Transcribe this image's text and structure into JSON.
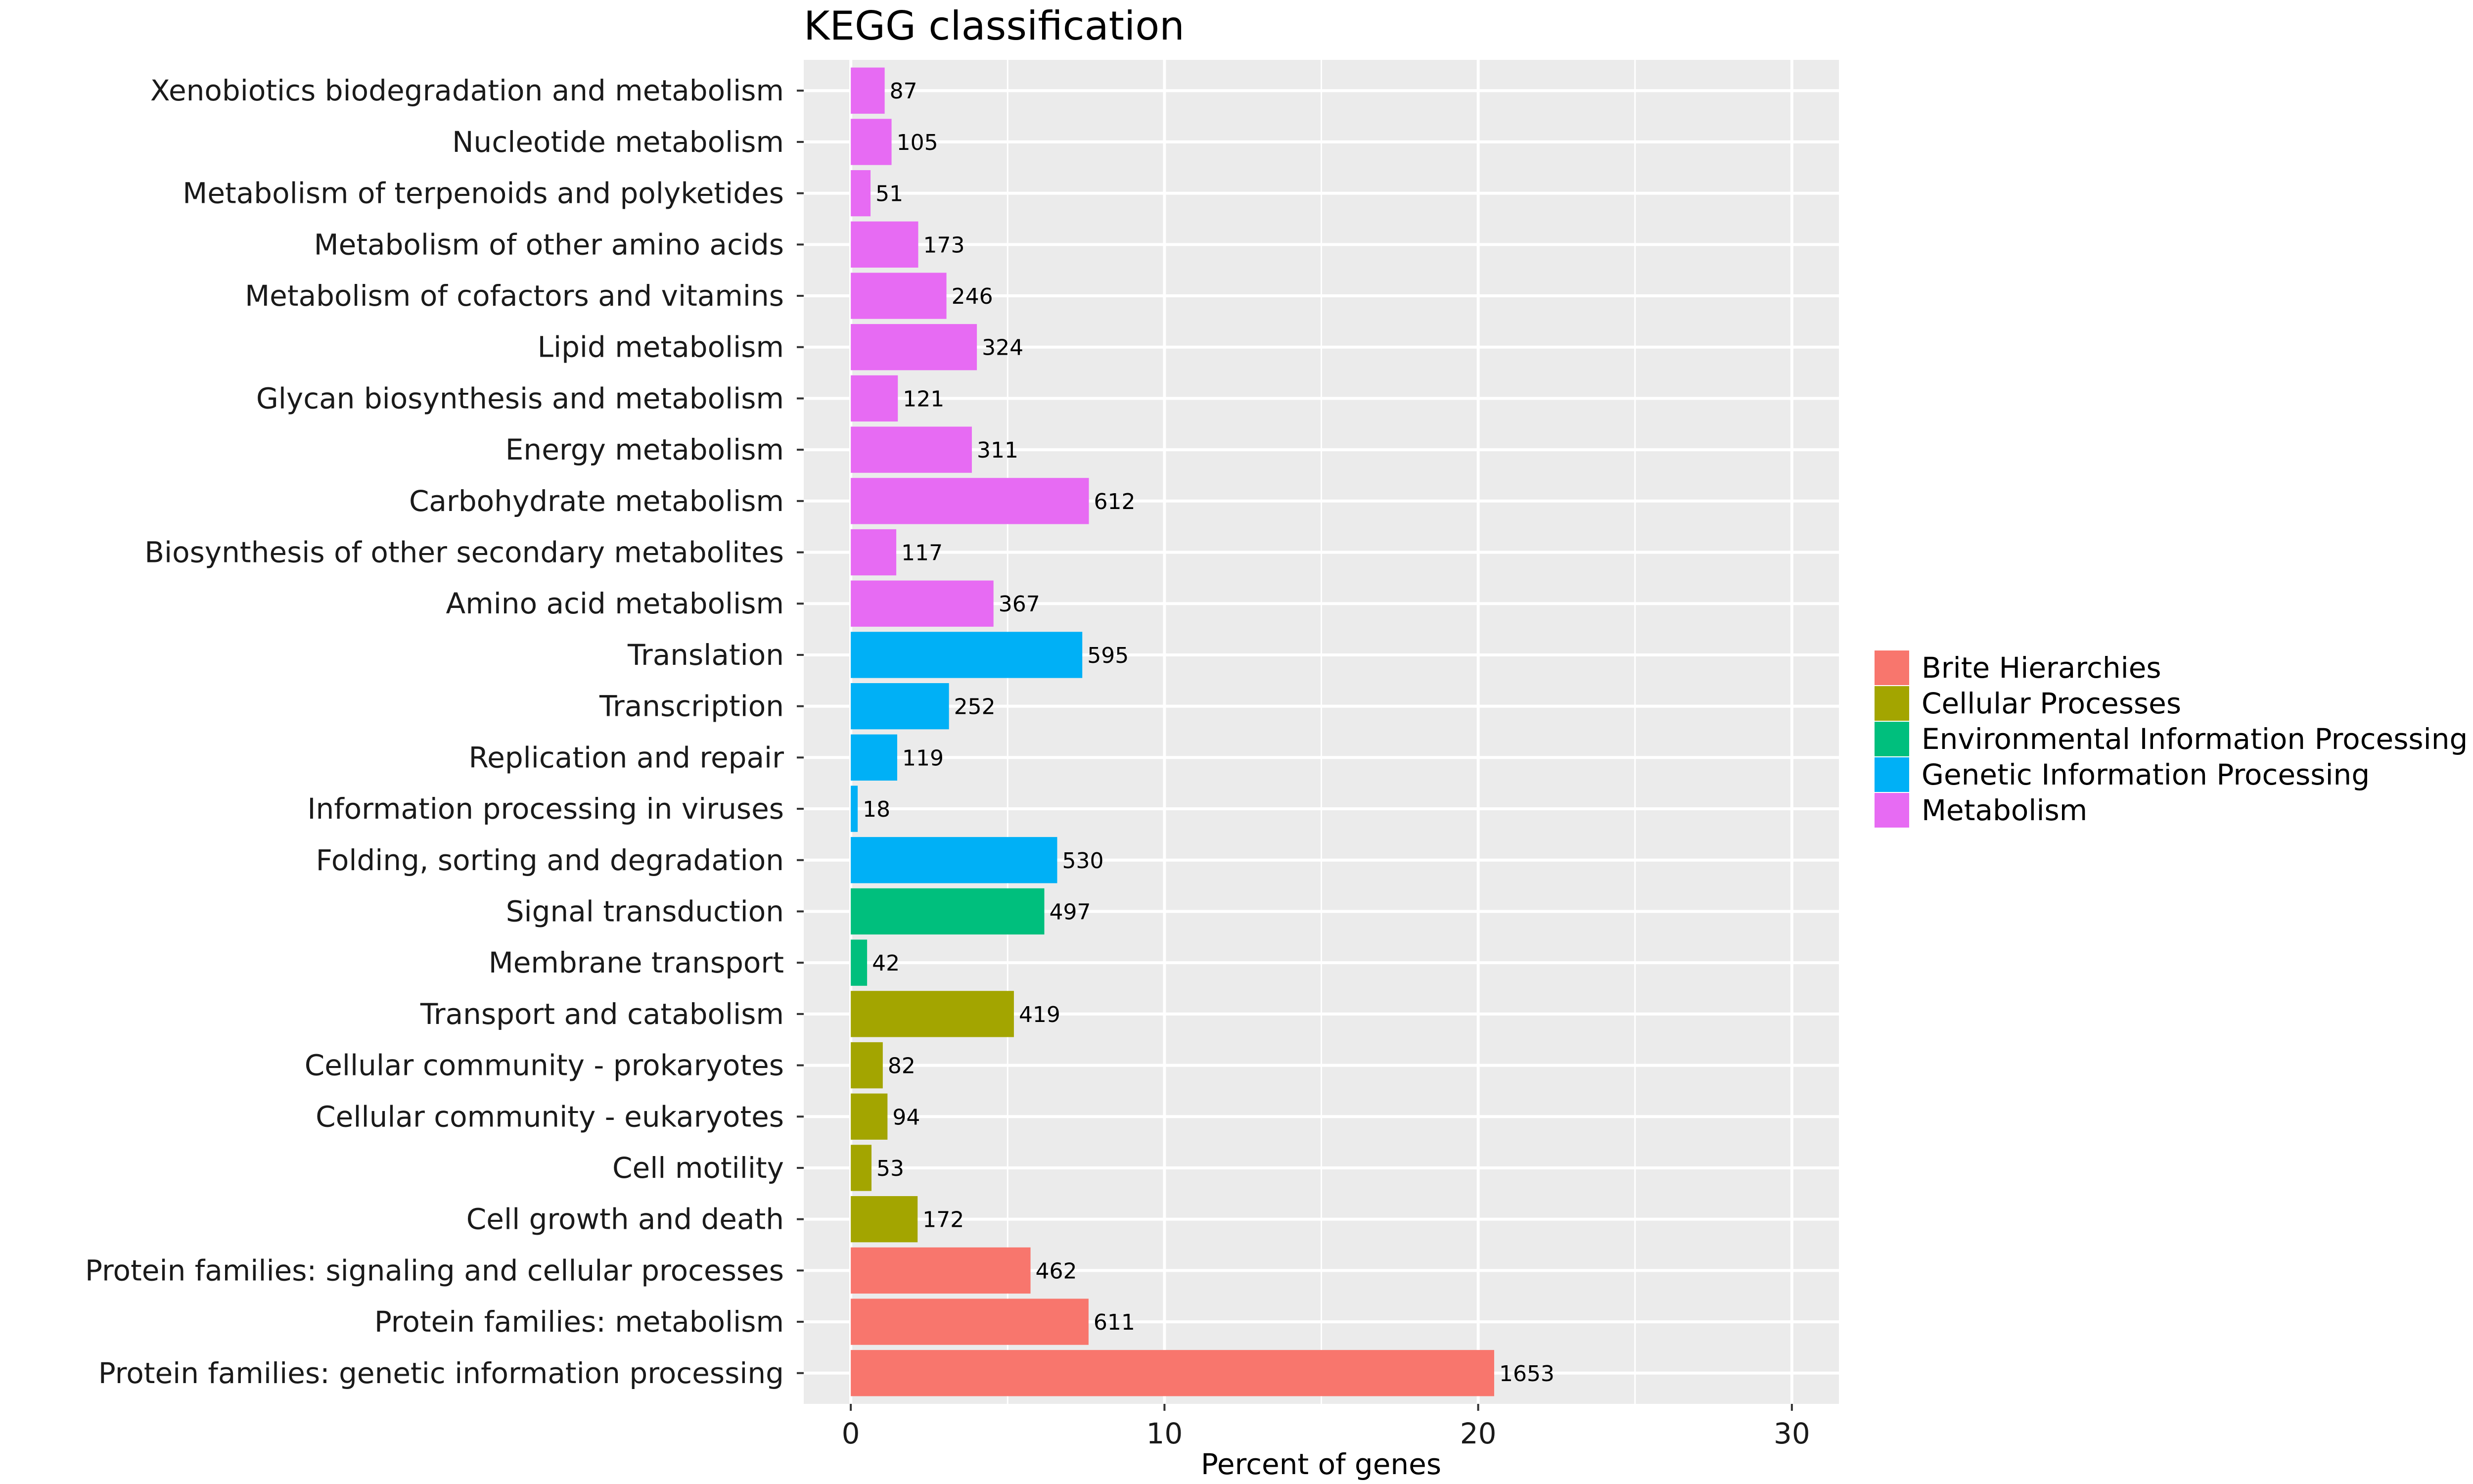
{
  "chart_data": {
    "type": "bar",
    "orientation": "horizontal",
    "title": "KEGG classification",
    "xlabel": "Percent of genes",
    "ylabel": "",
    "xlim": [
      -1.5,
      31.5
    ],
    "xticks": [
      0,
      10,
      20,
      30
    ],
    "grid": true,
    "legend_position": "right",
    "legend": [
      {
        "name": "Brite Hierarchies",
        "color": "#F8766D"
      },
      {
        "name": "Cellular Processes",
        "color": "#A3A500"
      },
      {
        "name": "Environmental Information Processing",
        "color": "#00BF7D"
      },
      {
        "name": "Genetic Information Processing",
        "color": "#00B0F6"
      },
      {
        "name": "Metabolism",
        "color": "#E76BF3"
      }
    ],
    "bars": [
      {
        "category": "Xenobiotics biodegradation and metabolism",
        "group": 4,
        "count": "87",
        "percent": 1.08
      },
      {
        "category": "Nucleotide metabolism",
        "group": 4,
        "count": "105",
        "percent": 1.3
      },
      {
        "category": "Metabolism of terpenoids and polyketides",
        "group": 4,
        "count": "51",
        "percent": 0.63
      },
      {
        "category": "Metabolism of other amino acids",
        "group": 4,
        "count": "173",
        "percent": 2.15
      },
      {
        "category": "Metabolism of cofactors and vitamins",
        "group": 4,
        "count": "246",
        "percent": 3.05
      },
      {
        "category": "Lipid metabolism",
        "group": 4,
        "count": "324",
        "percent": 4.02
      },
      {
        "category": "Glycan biosynthesis and metabolism",
        "group": 4,
        "count": "121",
        "percent": 1.5
      },
      {
        "category": "Energy metabolism",
        "group": 4,
        "count": "311",
        "percent": 3.86
      },
      {
        "category": "Carbohydrate metabolism",
        "group": 4,
        "count": "612",
        "percent": 7.59
      },
      {
        "category": "Biosynthesis of other secondary metabolites",
        "group": 4,
        "count": "117",
        "percent": 1.45
      },
      {
        "category": "Amino acid metabolism",
        "group": 4,
        "count": "367",
        "percent": 4.55
      },
      {
        "category": "Translation",
        "group": 3,
        "count": "595",
        "percent": 7.38
      },
      {
        "category": "Transcription",
        "group": 3,
        "count": "252",
        "percent": 3.13
      },
      {
        "category": "Replication and repair",
        "group": 3,
        "count": "119",
        "percent": 1.48
      },
      {
        "category": "Information processing in viruses",
        "group": 3,
        "count": "18",
        "percent": 0.22
      },
      {
        "category": "Folding, sorting and degradation",
        "group": 3,
        "count": "530",
        "percent": 6.58
      },
      {
        "category": "Signal transduction",
        "group": 2,
        "count": "497",
        "percent": 6.17
      },
      {
        "category": "Membrane transport",
        "group": 2,
        "count": "42",
        "percent": 0.52
      },
      {
        "category": "Transport and catabolism",
        "group": 1,
        "count": "419",
        "percent": 5.2
      },
      {
        "category": "Cellular community - prokaryotes",
        "group": 1,
        "count": "82",
        "percent": 1.02
      },
      {
        "category": "Cellular community - eukaryotes",
        "group": 1,
        "count": "94",
        "percent": 1.17
      },
      {
        "category": "Cell motility",
        "group": 1,
        "count": "53",
        "percent": 0.66
      },
      {
        "category": "Cell growth and death",
        "group": 1,
        "count": "172",
        "percent": 2.13
      },
      {
        "category": "Protein families: signaling and cellular processes",
        "group": 0,
        "count": "462",
        "percent": 5.73
      },
      {
        "category": "Protein families: metabolism",
        "group": 0,
        "count": "611",
        "percent": 7.58
      },
      {
        "category": "Protein families: genetic information processing",
        "group": 0,
        "count": "1653",
        "percent": 20.51
      }
    ]
  }
}
